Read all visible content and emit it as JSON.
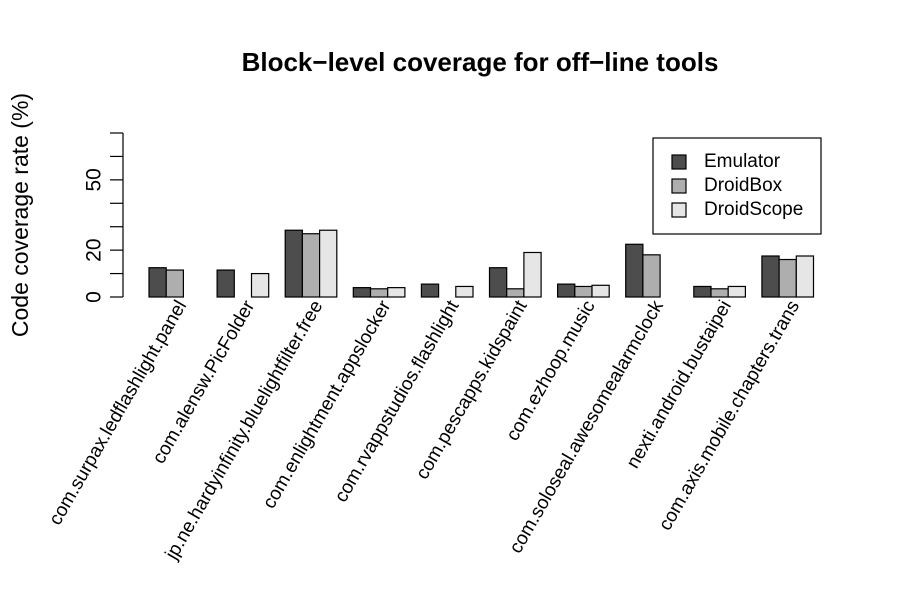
{
  "chart_data": {
    "type": "bar",
    "title": "Block−level coverage for off−line tools",
    "ylabel": "Code coverage rate (%)",
    "xlabel": "",
    "ylim": [
      0,
      70
    ],
    "yticks": [
      0,
      20,
      50
    ],
    "grid": false,
    "legend_position": "top-right",
    "categories": [
      "com.surpax.ledflashlight.panel",
      "com.alensw.PicFolder",
      "jp.ne.hardyinfinity.bluelightfilter.free",
      "com.enlightment.appslocker",
      "com.rvappstudios.flashlight",
      "com.pescapps.kidspaint",
      "com.ezhoop.music",
      "com.soloseal.awesomealarmclock",
      "nexti.android.bustaipei",
      "com.axis.mobile.chapters.trans"
    ],
    "series": [
      {
        "name": "Emulator",
        "color": "#4d4d4d",
        "values": [
          12.5,
          11.5,
          28.5,
          4.0,
          5.5,
          12.5,
          5.5,
          22.5,
          4.5,
          17.5
        ]
      },
      {
        "name": "DroidBox",
        "color": "#aeaeae",
        "values": [
          11.5,
          0,
          27.0,
          3.5,
          0,
          3.5,
          4.5,
          18.0,
          3.5,
          16.0
        ]
      },
      {
        "name": "DroidScope",
        "color": "#e6e6e6",
        "values": [
          0,
          10.0,
          28.5,
          4.0,
          4.5,
          19.0,
          5.0,
          0,
          4.5,
          17.5
        ]
      }
    ]
  }
}
